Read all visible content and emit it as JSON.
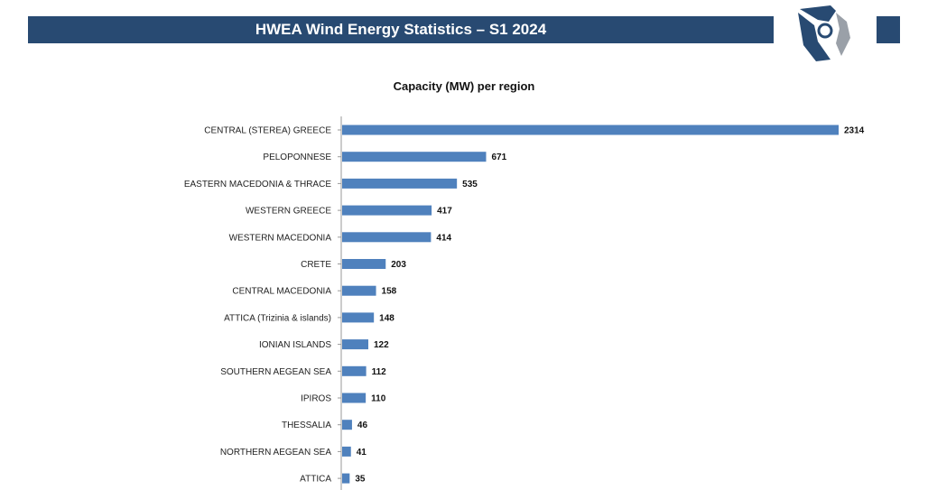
{
  "header": {
    "title": "HWEA Wind Energy Statistics – S1 2024"
  },
  "logo": {
    "icon": "wind-turbine-logo-icon",
    "colors": {
      "primary": "#284a72",
      "secondary": "#9aa0a8"
    }
  },
  "colors": {
    "header_bar": "#284a72",
    "bar": "#4f81bd",
    "axis": "#9a9a9a"
  },
  "chart_data": {
    "type": "bar",
    "orientation": "horizontal",
    "title": "Capacity (MW) per region",
    "xlabel": "",
    "ylabel": "",
    "xlim": [
      0,
      2314
    ],
    "grid": false,
    "legend": "none",
    "categories": [
      "CENTRAL (STEREA) GREECE",
      "PELOPONNESE",
      "EASTERN MACEDONIA & THRACE",
      "WESTERN GREECE",
      "WESTERN MACEDONIA",
      "CRETE",
      "CENTRAL MACEDONIA",
      "ATTICA (Trizinia & islands)",
      "IONIAN ISLANDS",
      "SOUTHERN AEGEAN SEA",
      "IPIROS",
      "THESSALIA",
      "NORTHERN AEGEAN SEA",
      "ATTICA"
    ],
    "values": [
      2314,
      671,
      535,
      417,
      414,
      203,
      158,
      148,
      122,
      112,
      110,
      46,
      41,
      35
    ]
  }
}
